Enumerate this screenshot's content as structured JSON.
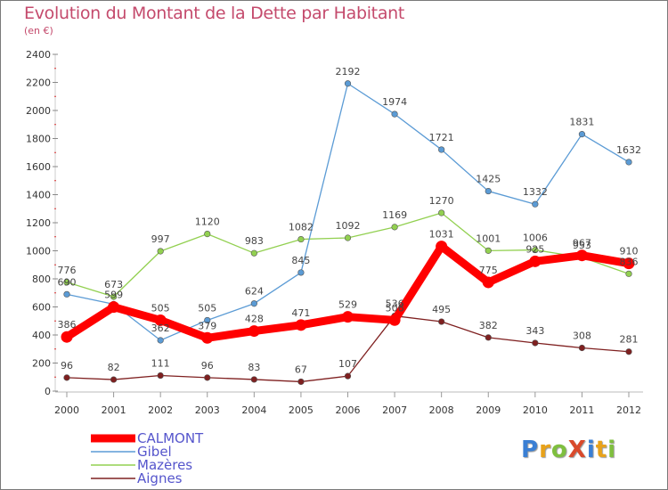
{
  "header": {
    "title": "Evolution du Montant de la Dette par Habitant",
    "subtitle": "(en €)"
  },
  "logo": {
    "text": "ProXiti",
    "colors": [
      "#3a7fd4",
      "#e8a21a",
      "#7fbf3f",
      "#d94a2c",
      "#3a7fd4",
      "#e8a21a",
      "#7fbf3f"
    ]
  },
  "colors": {
    "title": "#c44a6c",
    "CALMONT": "#ff0000",
    "Gibel": "#5b9bd5",
    "Mazeres": "#92d050",
    "Aignes": "#7f2020",
    "legend_text": "#5555cc"
  },
  "chart_data": {
    "type": "line",
    "title": "Evolution du Montant de la Dette par Habitant",
    "subtitle": "(en €)",
    "x": [
      "2000",
      "2001",
      "2002",
      "2003",
      "2004",
      "2005",
      "2006",
      "2007",
      "2008",
      "2009",
      "2010",
      "2011",
      "2012"
    ],
    "ylim": [
      0,
      2400
    ],
    "yticks": [
      "0",
      "200",
      "400",
      "600",
      "800",
      "1000",
      "1200",
      "1400",
      "1600",
      "1800",
      "2000",
      "2200",
      "2400"
    ],
    "grid": false,
    "legend_position": "bottom-left",
    "series": [
      {
        "name": "CALMONT",
        "values": [
          386,
          599,
          505,
          379,
          428,
          471,
          529,
          506,
          1031,
          775,
          925,
          967,
          910
        ],
        "labels": [
          "386",
          "599",
          "505",
          "379",
          "428",
          "471",
          "529",
          "506",
          "1031",
          "775",
          "925",
          "967",
          "910"
        ]
      },
      {
        "name": "Gibel",
        "values": [
          690,
          620,
          362,
          505,
          624,
          845,
          2192,
          1974,
          1721,
          1425,
          1332,
          1831,
          1632
        ],
        "labels": [
          "690",
          "",
          "362",
          "505",
          "624",
          "845",
          "2192",
          "1974",
          "1721",
          "1425",
          "1332",
          "1831",
          "1632"
        ]
      },
      {
        "name": "Mazères",
        "values": [
          776,
          673,
          997,
          1120,
          983,
          1082,
          1092,
          1169,
          1270,
          1001,
          1006,
          953,
          836
        ],
        "labels": [
          "776",
          "673",
          "997",
          "1120",
          "983",
          "1082",
          "1092",
          "1169",
          "1270",
          "1001",
          "1006",
          "953",
          "836"
        ]
      },
      {
        "name": "Aignes",
        "values": [
          96,
          82,
          111,
          96,
          83,
          67,
          107,
          536,
          495,
          382,
          343,
          308,
          281
        ],
        "labels": [
          "96",
          "82",
          "111",
          "96",
          "83",
          "67",
          "107",
          "536",
          "495",
          "382",
          "343",
          "308",
          "281"
        ]
      }
    ]
  }
}
